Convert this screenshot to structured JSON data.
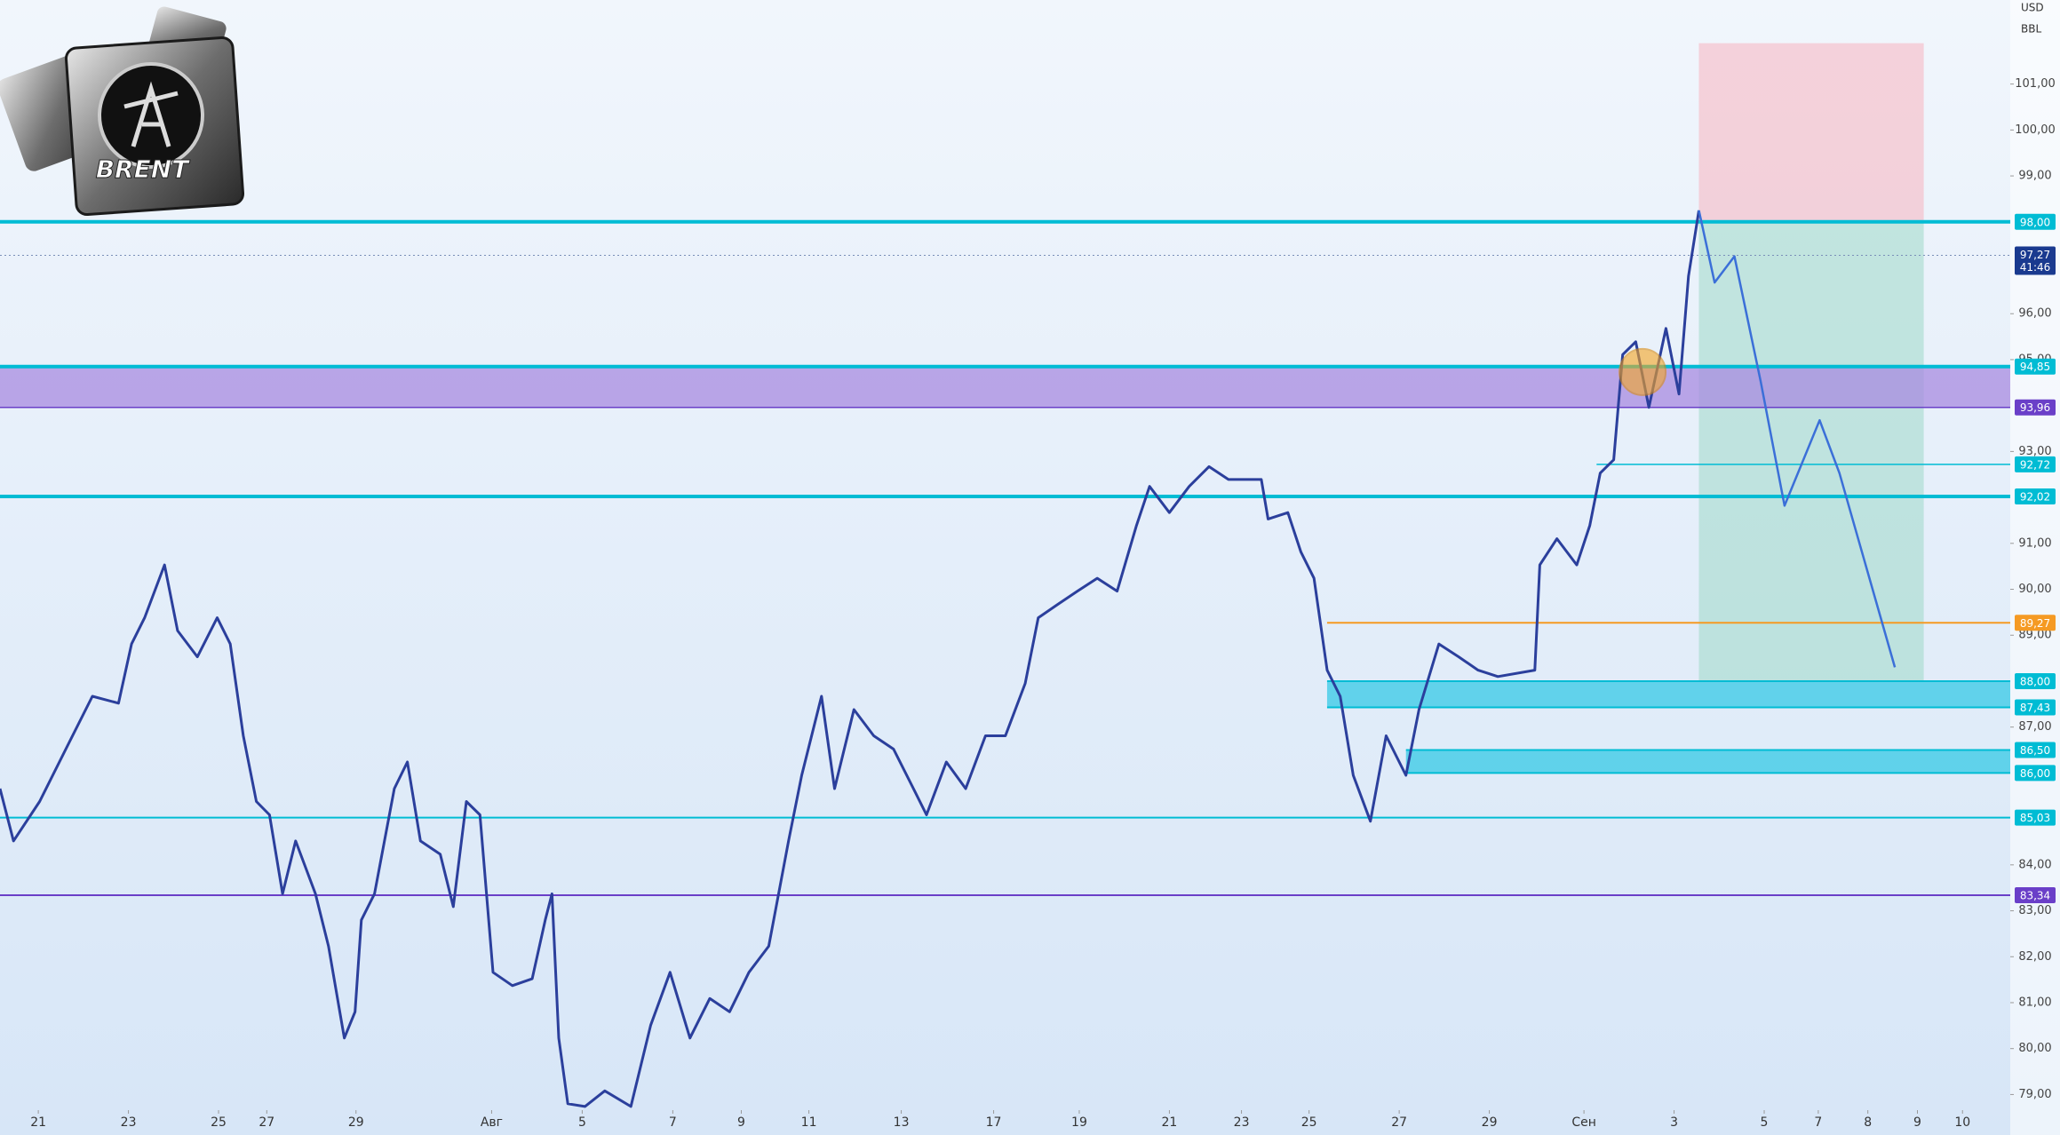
{
  "chart_data": {
    "type": "line",
    "logo_text": "BRENT",
    "currency": "USD",
    "unit": "BBL",
    "xlim": [
      -0.85,
      43.76
    ],
    "ylim": [
      78.66,
      102.83
    ],
    "xticks": [
      {
        "value": 0,
        "label": "21"
      },
      {
        "value": 2,
        "label": "23"
      },
      {
        "value": 4,
        "label": "25"
      },
      {
        "value": 5.07,
        "label": "27"
      },
      {
        "value": 7.05,
        "label": "29"
      },
      {
        "value": 10.06,
        "label": "Авг"
      },
      {
        "value": 12.07,
        "label": "5"
      },
      {
        "value": 14.08,
        "label": "7"
      },
      {
        "value": 15.6,
        "label": "9"
      },
      {
        "value": 17.1,
        "label": "11"
      },
      {
        "value": 19.15,
        "label": "13"
      },
      {
        "value": 21.2,
        "label": "17"
      },
      {
        "value": 23.1,
        "label": "19"
      },
      {
        "value": 25.1,
        "label": "21"
      },
      {
        "value": 26.7,
        "label": "23"
      },
      {
        "value": 28.2,
        "label": "25"
      },
      {
        "value": 30.2,
        "label": "27"
      },
      {
        "value": 32.2,
        "label": "29"
      },
      {
        "value": 34.3,
        "label": "Сен"
      },
      {
        "value": 36.3,
        "label": "3"
      },
      {
        "value": 38.3,
        "label": "5"
      },
      {
        "value": 39.5,
        "label": "7"
      },
      {
        "value": 40.6,
        "label": "8"
      },
      {
        "value": 41.7,
        "label": "9"
      },
      {
        "value": 42.7,
        "label": "10"
      }
    ],
    "yticks": [
      {
        "value": 79,
        "label": "79,00"
      },
      {
        "value": 80,
        "label": "80,00"
      },
      {
        "value": 81,
        "label": "81,00"
      },
      {
        "value": 82,
        "label": "82,00"
      },
      {
        "value": 83,
        "label": "83,00"
      },
      {
        "value": 84,
        "label": "84,00"
      },
      {
        "value": 87,
        "label": "87,00"
      },
      {
        "value": 89,
        "label": "89,00"
      },
      {
        "value": 90,
        "label": "90,00"
      },
      {
        "value": 91,
        "label": "91,00"
      },
      {
        "value": 93,
        "label": "93,00"
      },
      {
        "value": 95,
        "label": "95,00"
      },
      {
        "value": 96,
        "label": "96,00"
      },
      {
        "value": 99,
        "label": "99,00"
      },
      {
        "value": 100,
        "label": "100,00"
      },
      {
        "value": 101,
        "label": "101,00"
      }
    ],
    "series": [
      {
        "color": "#2b3f9c",
        "x": [
          -0.85,
          -0.55,
          0.03,
          0.61,
          1.2,
          1.78,
          2.07,
          2.36,
          2.8,
          3.09,
          3.53,
          3.97,
          4.26,
          4.55,
          4.84,
          5.13,
          5.42,
          5.71,
          6.15,
          6.44,
          6.79,
          7.03,
          7.17,
          7.46,
          7.9,
          8.19,
          8.48,
          8.92,
          9.21,
          9.5,
          9.8,
          10.09,
          10.52,
          10.96,
          11.25,
          11.4,
          11.55,
          11.75,
          12.13,
          12.57,
          13.15,
          13.59,
          14.02,
          14.46,
          14.9,
          15.34,
          15.77,
          16.21,
          16.65,
          16.94,
          17.38,
          17.67,
          18.1,
          18.54,
          18.98,
          19.42,
          19.71,
          20.15,
          20.58,
          21.02,
          21.46,
          21.9,
          22.19,
          22.62,
          23.06,
          23.5,
          23.94,
          24.37,
          24.66,
          25.1,
          25.54,
          25.98,
          26.41,
          27.14,
          27.29,
          27.73,
          28.02,
          28.31,
          28.6,
          28.89,
          29.18,
          29.56,
          29.91,
          30.35,
          30.64,
          31.08,
          31.52,
          31.95,
          32.39,
          33.21,
          33.32,
          33.7,
          34.14,
          34.43,
          34.66,
          34.96,
          35.16,
          35.45,
          35.74,
          36.12,
          36.41,
          36.62,
          36.85
        ],
        "values": [
          85.66,
          84.52,
          85.38,
          86.52,
          87.67,
          87.52,
          88.81,
          89.38,
          90.53,
          89.1,
          88.53,
          89.38,
          88.81,
          86.81,
          85.38,
          85.09,
          83.37,
          84.52,
          83.37,
          82.23,
          80.23,
          80.8,
          82.8,
          83.37,
          85.66,
          86.24,
          84.52,
          84.23,
          83.09,
          85.38,
          85.09,
          81.66,
          81.37,
          81.52,
          82.8,
          83.37,
          80.23,
          78.8,
          78.74,
          79.08,
          78.74,
          80.51,
          81.66,
          80.23,
          81.09,
          80.8,
          81.66,
          82.23,
          84.52,
          85.95,
          87.67,
          85.66,
          87.38,
          86.81,
          86.52,
          85.66,
          85.09,
          86.24,
          85.66,
          86.81,
          86.81,
          87.95,
          89.38,
          89.67,
          89.96,
          90.24,
          89.96,
          91.39,
          92.24,
          91.67,
          92.24,
          92.67,
          92.39,
          92.39,
          91.53,
          91.67,
          90.81,
          90.24,
          88.24,
          87.67,
          85.95,
          84.95,
          86.81,
          85.95,
          87.38,
          88.81,
          88.53,
          88.24,
          88.1,
          88.24,
          90.53,
          91.1,
          90.53,
          91.39,
          92.53,
          92.82,
          95.11,
          95.39,
          93.96,
          95.68,
          94.25,
          96.82,
          98.25
        ]
      },
      {
        "color": "#3b6fd8",
        "x": [
          36.85,
          37.2,
          37.64,
          38.22,
          38.75,
          39.53,
          39.97,
          40.55,
          41.2
        ],
        "values": [
          98.25,
          96.68,
          97.25,
          94.53,
          91.82,
          93.68,
          92.53,
          90.53,
          88.3
        ]
      }
    ],
    "levels": [
      {
        "value": 98,
        "label": "98,00",
        "color": "#00bcd4",
        "width": 4
      },
      {
        "value": 94.85,
        "label": "94,85",
        "color": "#00bcd4",
        "width": 4
      },
      {
        "value": 93.96,
        "label": "93,96",
        "color": "#6a3fc8",
        "width": 1.5
      },
      {
        "value": 92.72,
        "label": "92,72",
        "color": "#00bcd4",
        "width": 1.5,
        "from_x": 34.58
      },
      {
        "value": 92.02,
        "label": "92,02",
        "color": "#00bcd4",
        "width": 4
      },
      {
        "value": 89.27,
        "label": "89,27",
        "color": "#f59a23",
        "width": 2,
        "from_x": 28.6
      },
      {
        "value": 88,
        "label": "88,00",
        "color": "#00bcd4",
        "width": 2,
        "from_x": 28.6
      },
      {
        "value": 87.43,
        "label": "87,43",
        "color": "#00bcd4",
        "width": 2,
        "from_x": 28.6
      },
      {
        "value": 86.5,
        "label": "86,50",
        "color": "#00bcd4",
        "width": 2,
        "from_x": 30.35
      },
      {
        "value": 86,
        "label": "86,00",
        "color": "#00bcd4",
        "width": 2,
        "from_x": 30.35
      },
      {
        "value": 85.03,
        "label": "85,03",
        "color": "#00bcd4",
        "width": 2
      },
      {
        "value": 83.34,
        "label": "83,34",
        "color": "#6a3fc8",
        "width": 2
      }
    ],
    "zones": [
      {
        "levels": [
          1,
          2
        ],
        "color": "#a88be0"
      },
      {
        "levels": [
          6,
          7
        ],
        "color": "#36c9e6"
      },
      {
        "levels": [
          8,
          9
        ],
        "color": "#36c9e6"
      }
    ],
    "last_price": {
      "value": 97.27,
      "label": "97,27",
      "countdown": "41:46",
      "color": "#1a3a8f"
    },
    "position": {
      "entry": 98,
      "stop": 101.89,
      "target": 88,
      "x_from": 36.85,
      "x_to": 41.84
    },
    "marker": {
      "x": 35.6,
      "y": 94.73,
      "color": "#f5a623"
    }
  }
}
